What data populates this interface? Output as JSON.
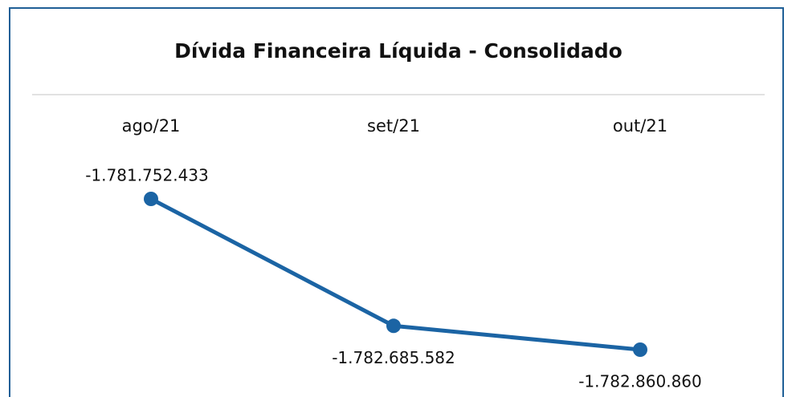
{
  "chart_data": {
    "type": "line",
    "title": "Dívida Financeira Líquida - Consolidado",
    "categories": [
      "ago/21",
      "set/21",
      "out/21"
    ],
    "values": [
      -1781752433,
      -1782685582,
      -1782860860
    ],
    "value_labels": [
      "-1.781.752.433",
      "-1.782.685.582",
      "-1.782.860.860"
    ],
    "color": "#1b64a4"
  }
}
